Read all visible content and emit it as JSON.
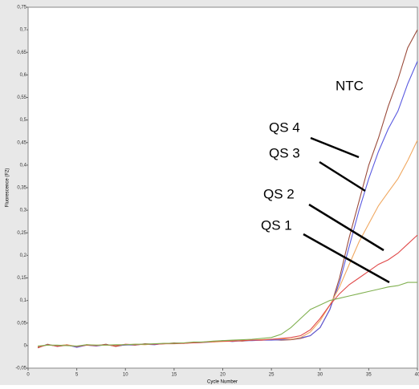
{
  "chart_data": {
    "type": "line",
    "x_label": "Cycle Number",
    "y_label": "Fluorescence (F2)",
    "x": [
      1,
      2,
      3,
      4,
      5,
      6,
      7,
      8,
      9,
      10,
      11,
      12,
      13,
      14,
      15,
      16,
      17,
      18,
      19,
      20,
      21,
      22,
      23,
      24,
      25,
      26,
      27,
      28,
      29,
      30,
      31,
      32,
      33,
      34,
      35,
      36,
      37,
      38,
      39,
      40
    ],
    "series": [
      {
        "color": "#9a4a3a",
        "values": [
          -0.005,
          0.003,
          -0.002,
          0.001,
          -0.003,
          0.002,
          0,
          0.003,
          -0.002,
          0.002,
          0.001,
          0.004,
          0.003,
          0.004,
          0.006,
          0.005,
          0.007,
          0.008,
          0.009,
          0.01,
          0.011,
          0.01,
          0.012,
          0.012,
          0.013,
          0.012,
          0.013,
          0.016,
          0.022,
          0.04,
          0.08,
          0.15,
          0.24,
          0.32,
          0.4,
          0.46,
          0.53,
          0.59,
          0.66,
          0.7
        ]
      },
      {
        "color": "#5a5ae0",
        "values": [
          -0.003,
          0.002,
          -0.001,
          0.002,
          -0.004,
          0.001,
          -0.001,
          0.002,
          0,
          0.001,
          0.002,
          0.003,
          0.002,
          0.005,
          0.005,
          0.006,
          0.006,
          0.007,
          0.008,
          0.011,
          0.009,
          0.011,
          0.011,
          0.012,
          0.012,
          0.013,
          0.014,
          0.017,
          0.022,
          0.04,
          0.08,
          0.14,
          0.22,
          0.3,
          0.37,
          0.43,
          0.48,
          0.52,
          0.58,
          0.63
        ]
      },
      {
        "color": "#f0a860",
        "values": [
          -0.002,
          0.001,
          0,
          0.002,
          -0.002,
          0.002,
          0.001,
          0.001,
          0.001,
          0.002,
          0.003,
          0.002,
          0.004,
          0.004,
          0.005,
          0.006,
          0.007,
          0.008,
          0.008,
          0.009,
          0.01,
          0.011,
          0.012,
          0.013,
          0.014,
          0.015,
          0.014,
          0.018,
          0.03,
          0.055,
          0.09,
          0.13,
          0.18,
          0.23,
          0.27,
          0.31,
          0.34,
          0.37,
          0.41,
          0.455
        ]
      },
      {
        "color": "#e04848",
        "values": [
          -0.004,
          0.002,
          -0.001,
          0.001,
          -0.002,
          0.001,
          0,
          0.002,
          -0.001,
          0.003,
          0.002,
          0.003,
          0.003,
          0.004,
          0.004,
          0.005,
          0.006,
          0.007,
          0.009,
          0.01,
          0.01,
          0.011,
          0.012,
          0.012,
          0.014,
          0.016,
          0.018,
          0.022,
          0.035,
          0.06,
          0.09,
          0.115,
          0.135,
          0.15,
          0.165,
          0.18,
          0.19,
          0.205,
          0.225,
          0.245
        ]
      },
      {
        "color": "#80b050",
        "values": [
          -0.001,
          0.001,
          0.001,
          0,
          -0.001,
          0.002,
          0.001,
          0.001,
          0.002,
          0.002,
          0.003,
          0.003,
          0.004,
          0.005,
          0.005,
          0.006,
          0.008,
          0.008,
          0.01,
          0.011,
          0.012,
          0.013,
          0.014,
          0.016,
          0.018,
          0.025,
          0.04,
          0.06,
          0.08,
          0.09,
          0.1,
          0.105,
          0.11,
          0.115,
          0.12,
          0.125,
          0.13,
          0.133,
          0.14,
          0.14
        ]
      }
    ],
    "xlim": [
      0,
      40
    ],
    "xticks": [
      0,
      5,
      10,
      15,
      20,
      25,
      30,
      35,
      40
    ],
    "ylim": [
      -0.05,
      0.75
    ],
    "yticks": [
      {
        "value": -0.05,
        "label": "-0,05"
      },
      {
        "value": 0,
        "label": "0"
      },
      {
        "value": 0.05,
        "label": "0,05"
      },
      {
        "value": 0.1,
        "label": "0,1"
      },
      {
        "value": 0.15,
        "label": "0,15"
      },
      {
        "value": 0.2,
        "label": "0,2"
      },
      {
        "value": 0.25,
        "label": "0,25"
      },
      {
        "value": 0.3,
        "label": "0,3"
      },
      {
        "value": 0.35,
        "label": "0,35"
      },
      {
        "value": 0.4,
        "label": "0,4"
      },
      {
        "value": 0.45,
        "label": "0,45"
      },
      {
        "value": 0.5,
        "label": "0,5"
      },
      {
        "value": 0.55,
        "label": "0,55"
      },
      {
        "value": 0.6,
        "label": "0,6"
      },
      {
        "value": 0.65,
        "label": "0,65"
      },
      {
        "value": 0.7,
        "label": "0,7"
      },
      {
        "value": 0.75,
        "label": "0,75"
      }
    ],
    "grid": false,
    "annotations": [
      "NTC",
      "QS 4",
      "QS 3",
      "QS 2",
      "QS 1"
    ]
  }
}
